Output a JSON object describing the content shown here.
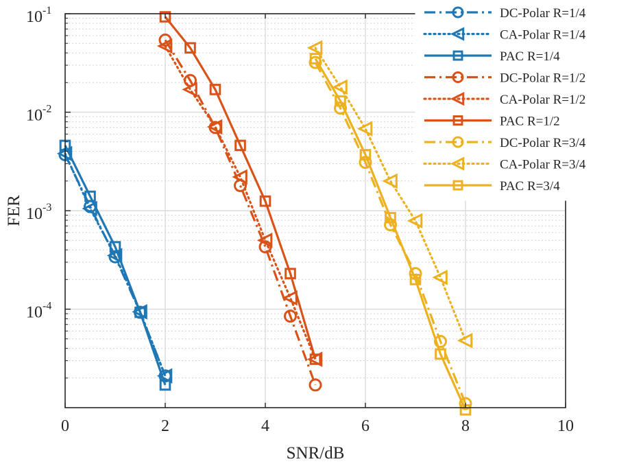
{
  "chart_data": {
    "type": "line",
    "xlabel": "SNR/dB",
    "ylabel": "FER",
    "xlim": [
      0,
      10
    ],
    "ylim": [
      1e-05,
      0.1
    ],
    "yscale": "log",
    "xticks": [
      "0",
      "2",
      "4",
      "6",
      "8",
      "10"
    ],
    "yticks": [
      {
        "base": "10",
        "exp": "-1"
      },
      {
        "base": "10",
        "exp": "-2"
      },
      {
        "base": "10",
        "exp": "-3"
      },
      {
        "base": "10",
        "exp": "-4"
      }
    ],
    "grid": true,
    "legend_position": "top-right",
    "series": [
      {
        "name": "DC-Polar R=1/4",
        "color": "#1f77b4",
        "line": "dashdot",
        "marker": "circle",
        "x": [
          0,
          0.5,
          1,
          1.5,
          2
        ],
        "y": [
          0.0037,
          0.0011,
          0.00034,
          9.3e-05,
          2.1e-05
        ]
      },
      {
        "name": "CA-Polar R=1/4",
        "color": "#1f77b4",
        "line": "dotted",
        "marker": "triangle-left",
        "x": [
          0,
          0.5,
          1,
          1.5,
          2
        ],
        "y": [
          0.0038,
          0.00105,
          0.00035,
          9.4e-05,
          2.1e-05
        ]
      },
      {
        "name": "PAC R=1/4",
        "color": "#1f77b4",
        "line": "solid",
        "marker": "square",
        "x": [
          0,
          0.5,
          1,
          1.5,
          2
        ],
        "y": [
          0.0046,
          0.0014,
          0.00043,
          9.3e-05,
          1.7e-05
        ]
      },
      {
        "name": "DC-Polar R=1/2",
        "color": "#d95319",
        "line": "dashdot",
        "marker": "circle",
        "x": [
          2,
          2.5,
          3,
          3.5,
          4,
          4.5,
          5
        ],
        "y": [
          0.054,
          0.021,
          0.007,
          0.0018,
          0.00043,
          8.5e-05,
          1.7e-05
        ]
      },
      {
        "name": "CA-Polar R=1/2",
        "color": "#d95319",
        "line": "dotted",
        "marker": "triangle-left",
        "x": [
          2,
          2.5,
          3,
          3.5,
          4,
          4.5,
          5
        ],
        "y": [
          0.047,
          0.017,
          0.0071,
          0.0022,
          0.0005,
          0.00013,
          3.1e-05
        ]
      },
      {
        "name": "PAC R=1/2",
        "color": "#d95319",
        "line": "solid",
        "marker": "square",
        "x": [
          2,
          2.5,
          3,
          3.5,
          4,
          4.5,
          5
        ],
        "y": [
          0.093,
          0.045,
          0.017,
          0.0046,
          0.00125,
          0.00023,
          3.1e-05
        ]
      },
      {
        "name": "DC-Polar R=3/4",
        "color": "#edb120",
        "line": "dashdot",
        "marker": "circle",
        "x": [
          5,
          5.5,
          6,
          6.5,
          7,
          7.5,
          8
        ],
        "y": [
          0.032,
          0.011,
          0.0031,
          0.00072,
          0.00023,
          4.7e-05,
          1.1e-05
        ]
      },
      {
        "name": "CA-Polar R=3/4",
        "color": "#edb120",
        "line": "dotted",
        "marker": "triangle-left",
        "x": [
          5,
          5.5,
          6,
          6.5,
          7,
          7.5,
          8
        ],
        "y": [
          0.045,
          0.018,
          0.0068,
          0.002,
          0.00079,
          0.00021,
          4.8e-05
        ]
      },
      {
        "name": "PAC R=3/4",
        "color": "#edb120",
        "line": "solid",
        "marker": "square",
        "x": [
          5,
          5.5,
          6,
          6.5,
          7,
          7.5,
          8
        ],
        "y": [
          0.035,
          0.013,
          0.0037,
          0.00085,
          0.0002,
          3.5e-05,
          9.5e-06
        ]
      }
    ]
  }
}
